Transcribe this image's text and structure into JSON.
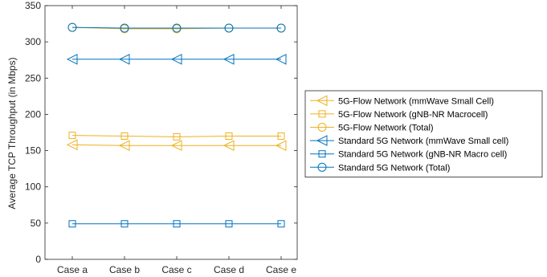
{
  "chart_data": {
    "type": "line",
    "categories": [
      "Case a",
      "Case b",
      "Case c",
      "Case d",
      "Case e"
    ],
    "ylabel": "Average TCP Throughput (in Mbps)",
    "xlabel": "",
    "ylim": [
      0,
      350
    ],
    "yticks": [
      0,
      50,
      100,
      150,
      200,
      250,
      300,
      350
    ],
    "grid": false,
    "legend_position": "right",
    "series": [
      {
        "name": "5G-Flow Network (mmWave Small Cell)",
        "values": [
          158,
          157,
          157,
          157,
          157
        ],
        "marker": "triangle-left",
        "color": "#EDB120"
      },
      {
        "name": "5G-Flow Network (gNB-NR Macrocell)",
        "values": [
          171,
          170,
          169,
          170,
          170
        ],
        "marker": "square",
        "color": "#EDB120"
      },
      {
        "name": "5G-Flow Network (Total)",
        "values": [
          320,
          318,
          318,
          319,
          319
        ],
        "marker": "circle",
        "color": "#EDB120"
      },
      {
        "name": "Standard 5G Network (mmWave Small cell)",
        "values": [
          276,
          276,
          276,
          276,
          276
        ],
        "marker": "triangle-left",
        "color": "#0072BD"
      },
      {
        "name": "Standard 5G Network (gNB-NR Macro cell)",
        "values": [
          49,
          49,
          49,
          49,
          49
        ],
        "marker": "square",
        "color": "#0072BD"
      },
      {
        "name": "Standard 5G Network (Total)",
        "values": [
          320,
          319,
          319,
          319,
          319
        ],
        "marker": "circle",
        "color": "#0072BD"
      }
    ]
  }
}
